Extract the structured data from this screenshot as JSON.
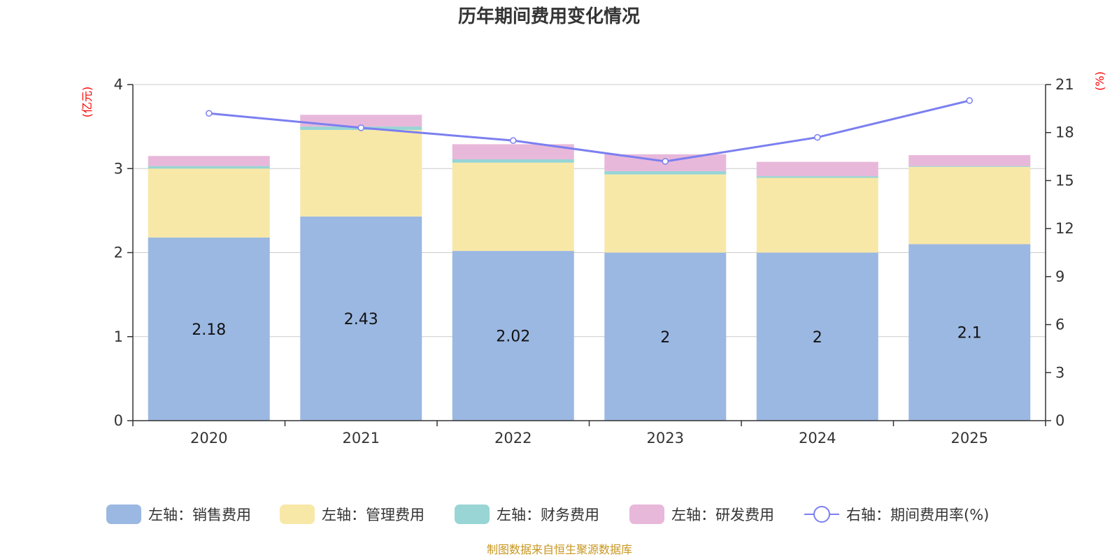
{
  "chart_data": {
    "type": "bar",
    "stacked": true,
    "title": "历年期间费用变化情况",
    "categories": [
      "2020",
      "2021",
      "2022",
      "2023",
      "2024",
      "2025"
    ],
    "left_axis": {
      "unit_label": "(亿元)",
      "ylim": [
        0,
        4
      ],
      "ticks": [
        "0",
        "1",
        "2",
        "3",
        "4"
      ]
    },
    "right_axis": {
      "unit_label": "(%)",
      "ylim": [
        0,
        21
      ],
      "ticks": [
        "0",
        "3",
        "6",
        "9",
        "12",
        "15",
        "18",
        "21"
      ]
    },
    "series": [
      {
        "name": "左轴：销售费用",
        "axis": "left",
        "type": "bar",
        "color": "#9bb8e2",
        "values": [
          2.18,
          2.43,
          2.02,
          2.0,
          2.0,
          2.1
        ],
        "labels": [
          "2.18",
          "2.43",
          "2.02",
          "2",
          "2",
          "2.1"
        ]
      },
      {
        "name": "左轴：管理费用",
        "axis": "left",
        "type": "bar",
        "color": "#f8e8a8",
        "values": [
          0.82,
          1.03,
          1.05,
          0.93,
          0.89,
          0.92
        ]
      },
      {
        "name": "左轴：财务费用",
        "axis": "left",
        "type": "bar",
        "color": "#98d5d4",
        "values": [
          0.03,
          0.04,
          0.04,
          0.04,
          0.02,
          0.01
        ]
      },
      {
        "name": "左轴：研发费用",
        "axis": "left",
        "type": "bar",
        "color": "#e8b8da",
        "values": [
          0.12,
          0.14,
          0.18,
          0.2,
          0.17,
          0.13
        ]
      },
      {
        "name": "右轴：期间费用率(%)",
        "axis": "right",
        "type": "line",
        "color": "#7b7ff0",
        "values": [
          19.2,
          18.3,
          17.5,
          16.2,
          17.7,
          20.0
        ]
      }
    ],
    "legend_position": "bottom",
    "source": "制图数据来自恒生聚源数据库"
  }
}
